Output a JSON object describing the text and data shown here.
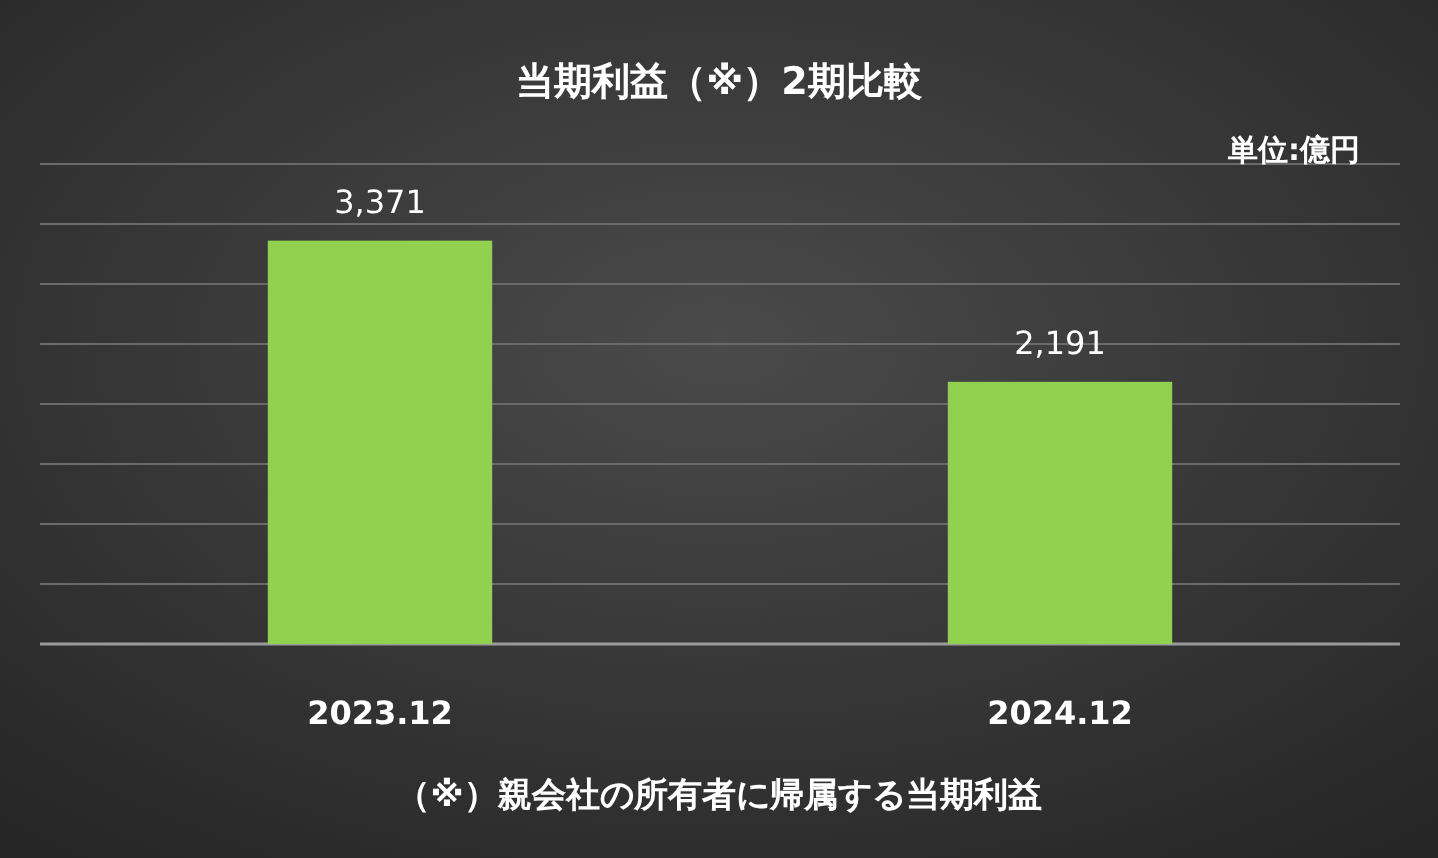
{
  "chart_data": {
    "type": "bar",
    "title": "当期利益（※）2期比較",
    "categories": [
      "2023.12",
      "2024.12"
    ],
    "values": [
      3371,
      2191
    ],
    "color": "#92d050",
    "value_labels": [
      "3,371",
      "2,191"
    ],
    "grid": "y",
    "annotations": [
      "単位:億円",
      "（※）親会社の所有者に帰属する当期利益"
    ]
  }
}
